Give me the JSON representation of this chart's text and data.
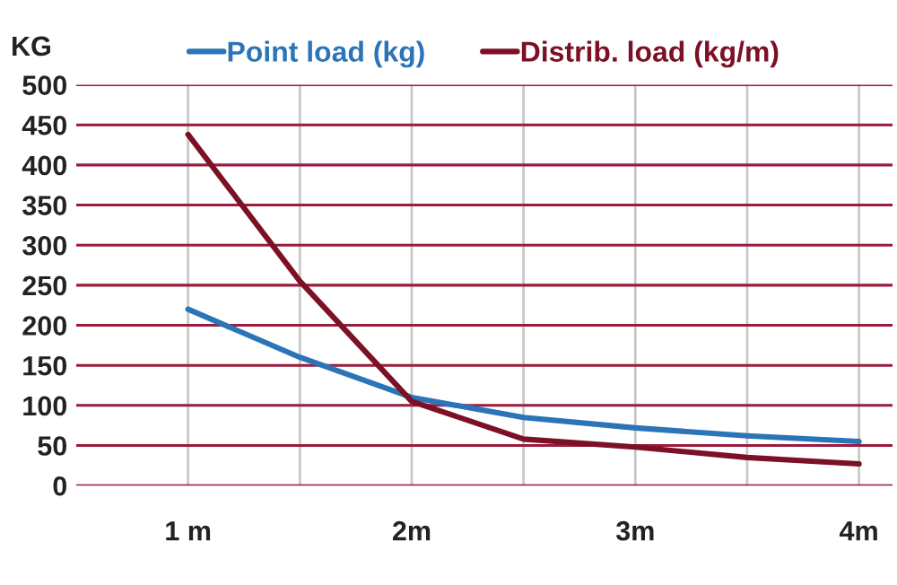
{
  "chart_data": {
    "type": "line",
    "ylabel": "KG",
    "x": [
      1,
      1.5,
      2,
      2.5,
      3,
      3.5,
      4
    ],
    "series": [
      {
        "name": "Point load (kg)",
        "color": "#2b74b8",
        "values": [
          220,
          160,
          110,
          85,
          72,
          62,
          55
        ]
      },
      {
        "name": "Distrib. load (kg/m)",
        "color": "#7c1025",
        "values": [
          438,
          255,
          105,
          58,
          48,
          35,
          27
        ]
      }
    ],
    "xlim": [
      0.5,
      4.15
    ],
    "xticks": [
      {
        "value": 1,
        "label": "1 m"
      },
      {
        "value": 1.5,
        "label": null
      },
      {
        "value": 2,
        "label": "2m"
      },
      {
        "value": 2.5,
        "label": null
      },
      {
        "value": 3,
        "label": "3m"
      },
      {
        "value": 3.5,
        "label": null
      },
      {
        "value": 4,
        "label": "4m"
      }
    ],
    "ylim": [
      0,
      500
    ],
    "yticks": [
      0,
      50,
      100,
      150,
      200,
      250,
      300,
      350,
      400,
      450,
      500
    ],
    "grid": true,
    "legend": "top",
    "marker": "none",
    "line_style": "solid"
  }
}
